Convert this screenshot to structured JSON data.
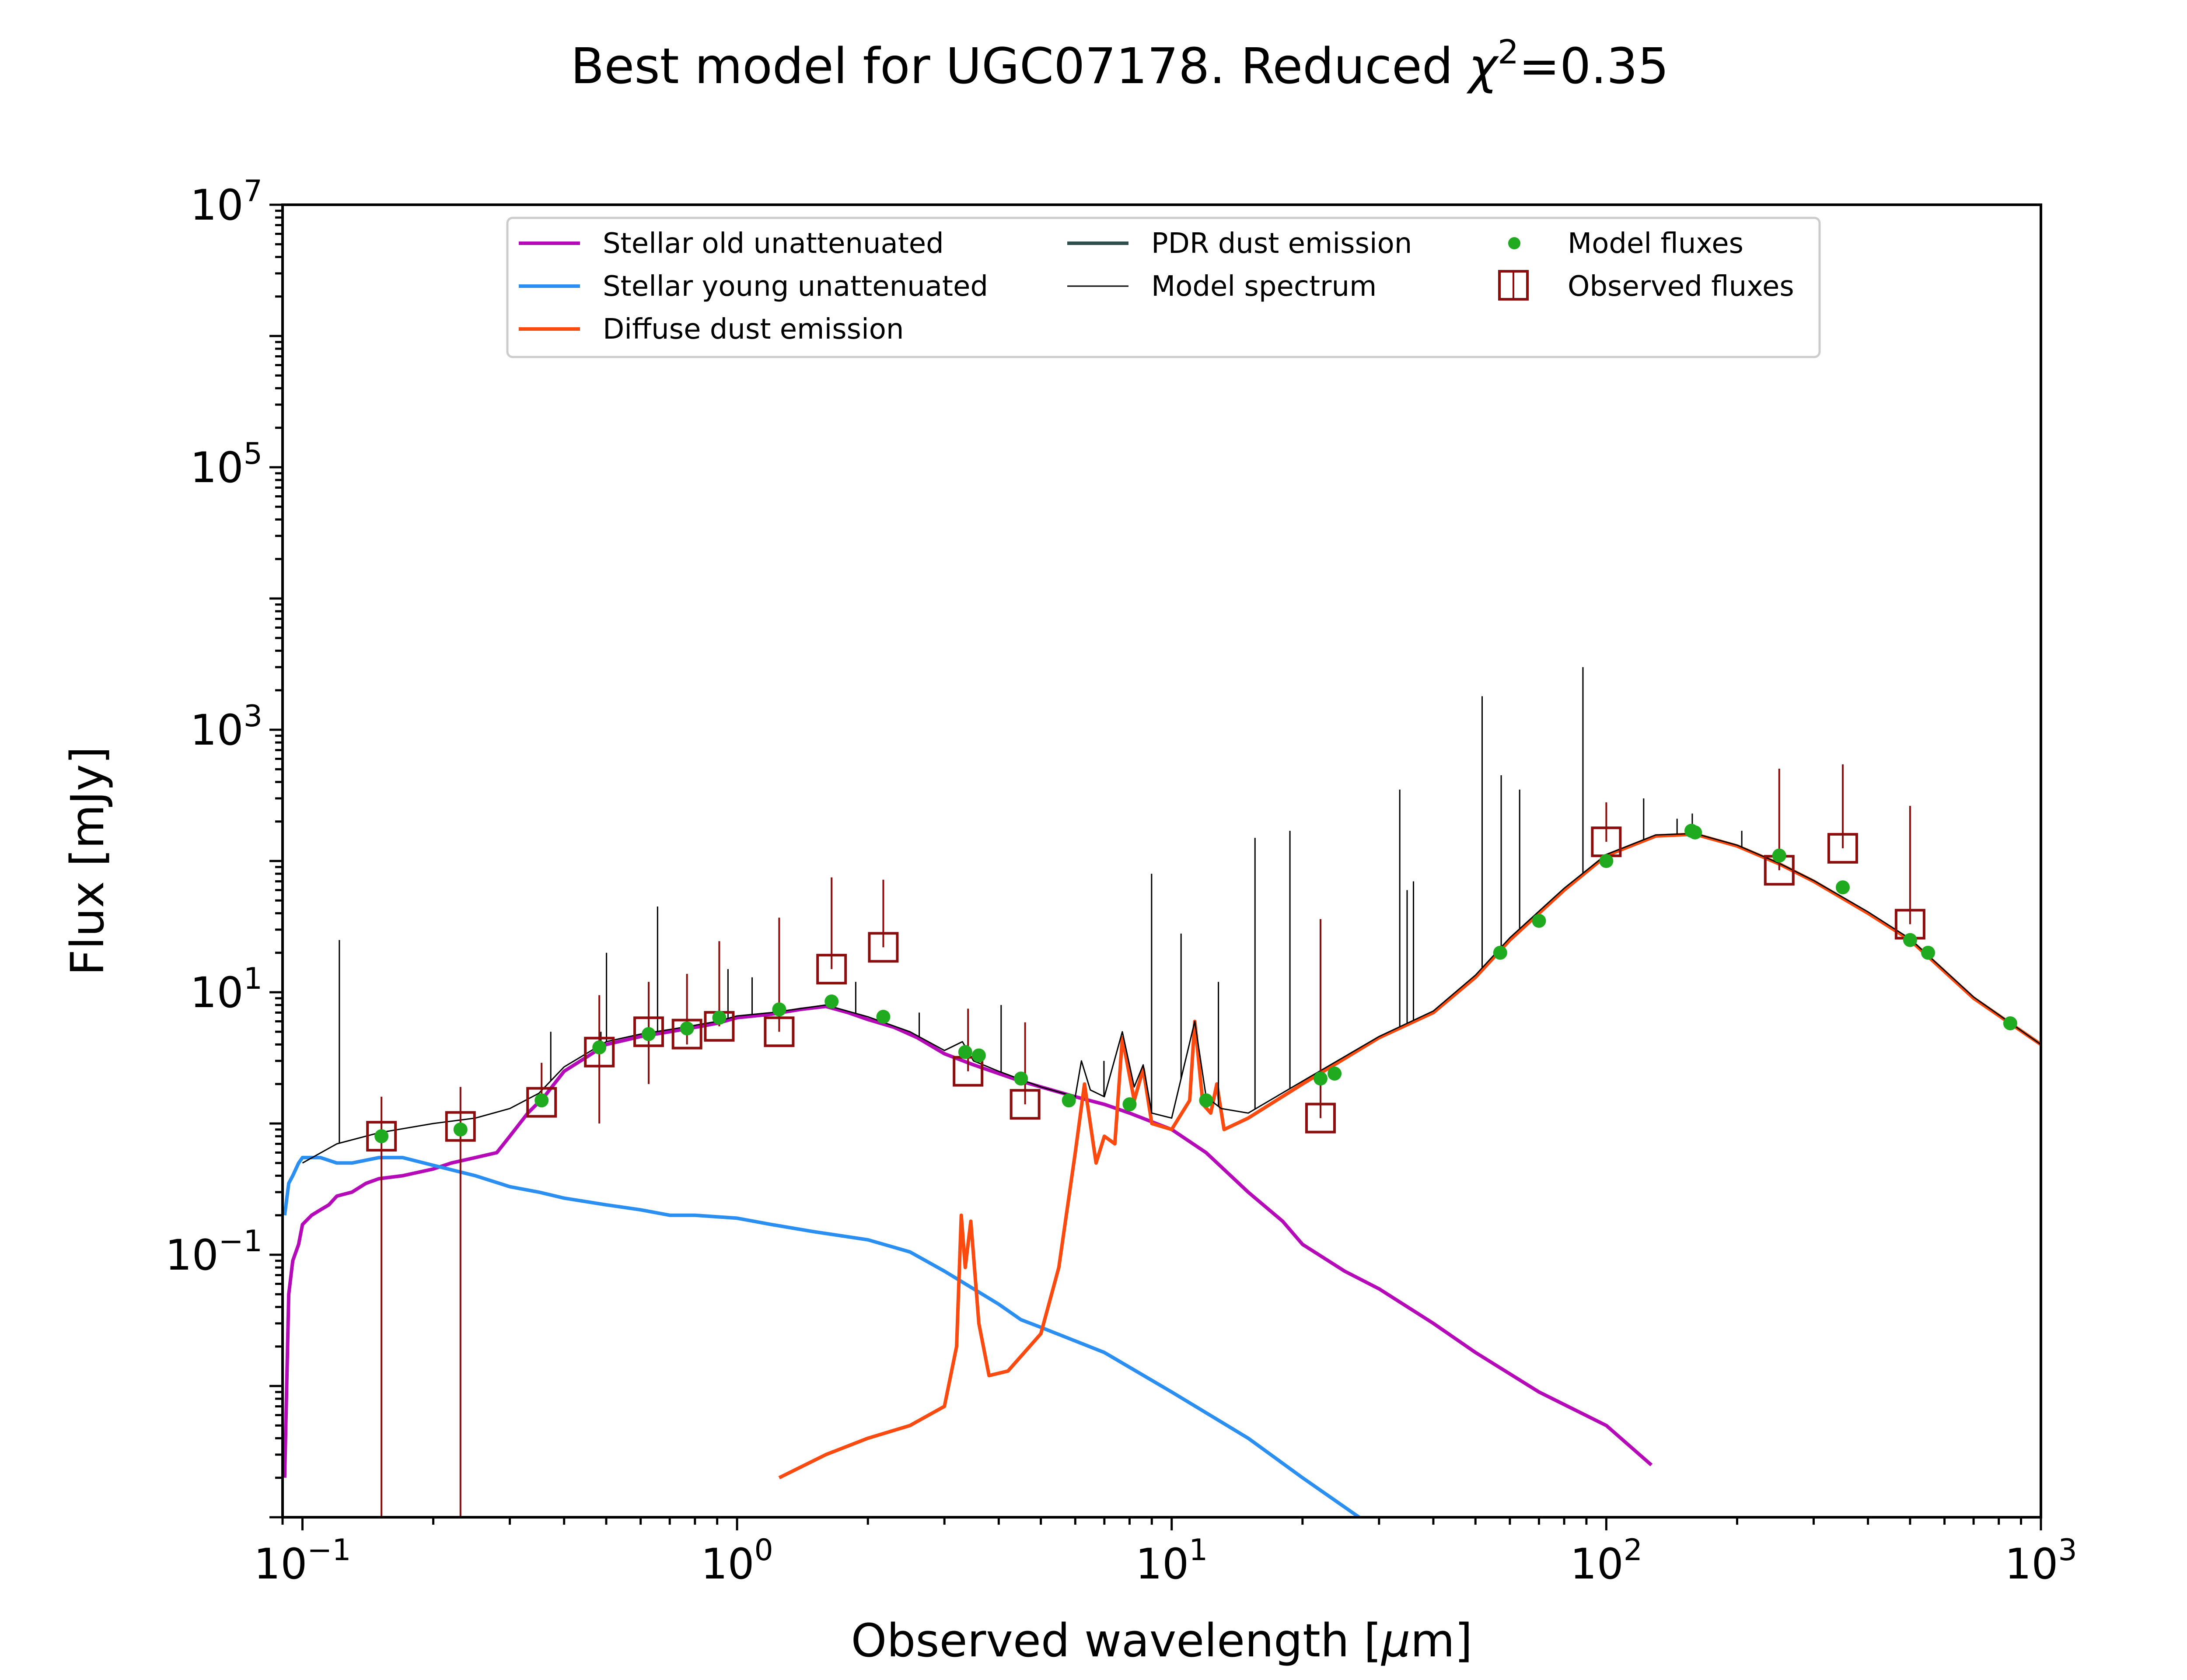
{
  "chart_data": {
    "type": "line",
    "title": "Best model for UGC07178. Reduced χ²=0.35",
    "title_parts": {
      "main": "Best model for UGC07178. Reduced ",
      "symbol": "χ",
      "sup": "2",
      "tail": "=0.35"
    },
    "xlabel": "Observed wavelength [μm]",
    "xlabel_parts": {
      "before": "Observed wavelength [",
      "mu": "μ",
      "after": "m]"
    },
    "ylabel": "Flux [mJy]",
    "x_scale": "log",
    "y_scale": "log",
    "xlim": [
      0.09,
      1000
    ],
    "ylim": [
      0.001,
      10000000
    ],
    "x_ticks": [
      {
        "value": 0.1,
        "base": "10",
        "exp": "−1"
      },
      {
        "value": 1,
        "base": "10",
        "exp": "0"
      },
      {
        "value": 10,
        "base": "10",
        "exp": "1"
      },
      {
        "value": 100,
        "base": "10",
        "exp": "2"
      },
      {
        "value": 1000,
        "base": "10",
        "exp": "3"
      }
    ],
    "y_ticks": [
      {
        "value": 0.1,
        "base": "10",
        "exp": "−1"
      },
      {
        "value": 10,
        "base": "10",
        "exp": "1"
      },
      {
        "value": 1000,
        "base": "10",
        "exp": "3"
      },
      {
        "value": 100000,
        "base": "10",
        "exp": "5"
      },
      {
        "value": 10000000,
        "base": "10",
        "exp": "7"
      }
    ],
    "legend_position": "top-center",
    "legend": {
      "stellar_old": "Stellar old unattenuated",
      "stellar_young": "Stellar young unattenuated",
      "diffuse_dust": "Diffuse dust emission",
      "pdr_dust": "PDR dust emission",
      "model_spectrum": "Model spectrum",
      "model_fluxes": "Model fluxes",
      "observed_fluxes": "Observed fluxes"
    },
    "colors": {
      "stellar_old": "#b40ab8",
      "stellar_young": "#2a8ff0",
      "diffuse_dust": "#fa4a10",
      "pdr_dust": "#2f4f4f",
      "model_spectrum": "#000000",
      "model_fluxes": "#1faa1f",
      "observed_fluxes": "#8b0d0d"
    },
    "series": [
      {
        "key": "stellar_old",
        "points": [
          [
            0.091,
            0.002
          ],
          [
            0.093,
            0.05
          ],
          [
            0.095,
            0.09
          ],
          [
            0.098,
            0.12
          ],
          [
            0.1,
            0.17
          ],
          [
            0.105,
            0.2
          ],
          [
            0.11,
            0.22
          ],
          [
            0.115,
            0.24
          ],
          [
            0.12,
            0.28
          ],
          [
            0.13,
            0.3
          ],
          [
            0.14,
            0.35
          ],
          [
            0.15,
            0.38
          ],
          [
            0.17,
            0.4
          ],
          [
            0.2,
            0.45
          ],
          [
            0.22,
            0.5
          ],
          [
            0.25,
            0.55
          ],
          [
            0.28,
            0.6
          ],
          [
            0.3,
            0.8
          ],
          [
            0.33,
            1.2
          ],
          [
            0.36,
            1.6
          ],
          [
            0.4,
            2.5
          ],
          [
            0.45,
            3.2
          ],
          [
            0.5,
            4.0
          ],
          [
            0.6,
            4.6
          ],
          [
            0.7,
            5.0
          ],
          [
            0.8,
            5.4
          ],
          [
            0.9,
            5.8
          ],
          [
            1.0,
            6.4
          ],
          [
            1.2,
            6.8
          ],
          [
            1.4,
            7.4
          ],
          [
            1.6,
            7.8
          ],
          [
            1.8,
            7.0
          ],
          [
            2.0,
            6.2
          ],
          [
            2.3,
            5.4
          ],
          [
            2.6,
            4.5
          ],
          [
            3.0,
            3.4
          ],
          [
            3.5,
            2.8
          ],
          [
            4.0,
            2.4
          ],
          [
            4.5,
            2.1
          ],
          [
            5,
            1.9
          ],
          [
            6,
            1.6
          ],
          [
            7,
            1.4
          ],
          [
            8,
            1.2
          ],
          [
            10,
            0.9
          ],
          [
            12,
            0.6
          ],
          [
            15,
            0.3
          ],
          [
            18,
            0.18
          ],
          [
            20,
            0.12
          ],
          [
            25,
            0.075
          ],
          [
            30,
            0.055
          ],
          [
            40,
            0.03
          ],
          [
            50,
            0.018
          ],
          [
            70,
            0.009
          ],
          [
            100,
            0.005
          ],
          [
            127,
            0.0025
          ]
        ]
      },
      {
        "key": "stellar_young",
        "points": [
          [
            0.091,
            0.2
          ],
          [
            0.093,
            0.35
          ],
          [
            0.095,
            0.4
          ],
          [
            0.098,
            0.5
          ],
          [
            0.1,
            0.55
          ],
          [
            0.11,
            0.55
          ],
          [
            0.12,
            0.5
          ],
          [
            0.13,
            0.5
          ],
          [
            0.15,
            0.55
          ],
          [
            0.17,
            0.55
          ],
          [
            0.2,
            0.48
          ],
          [
            0.25,
            0.4
          ],
          [
            0.3,
            0.33
          ],
          [
            0.35,
            0.3
          ],
          [
            0.4,
            0.27
          ],
          [
            0.5,
            0.24
          ],
          [
            0.6,
            0.22
          ],
          [
            0.7,
            0.2
          ],
          [
            0.8,
            0.2
          ],
          [
            1.0,
            0.19
          ],
          [
            1.2,
            0.17
          ],
          [
            1.5,
            0.15
          ],
          [
            2.0,
            0.13
          ],
          [
            2.5,
            0.105
          ],
          [
            3.0,
            0.075
          ],
          [
            3.5,
            0.055
          ],
          [
            4.0,
            0.042
          ],
          [
            4.5,
            0.032
          ],
          [
            5.0,
            0.028
          ],
          [
            7.0,
            0.018
          ],
          [
            10.0,
            0.009
          ],
          [
            15.0,
            0.004
          ],
          [
            20.0,
            0.002
          ],
          [
            27.0,
            0.001
          ]
        ]
      },
      {
        "key": "diffuse_dust",
        "points": [
          [
            1.25,
            0.002
          ],
          [
            1.6,
            0.003
          ],
          [
            2.0,
            0.004
          ],
          [
            2.5,
            0.005
          ],
          [
            3.0,
            0.007
          ],
          [
            3.2,
            0.02
          ],
          [
            3.28,
            0.2
          ],
          [
            3.35,
            0.08
          ],
          [
            3.45,
            0.18
          ],
          [
            3.6,
            0.03
          ],
          [
            3.8,
            0.012
          ],
          [
            4.2,
            0.013
          ],
          [
            5.0,
            0.025
          ],
          [
            5.5,
            0.08
          ],
          [
            6.0,
            0.6
          ],
          [
            6.3,
            2.0
          ],
          [
            6.7,
            0.5
          ],
          [
            7.0,
            0.8
          ],
          [
            7.4,
            0.7
          ],
          [
            7.7,
            4.5
          ],
          [
            8.2,
            1.5
          ],
          [
            8.6,
            2.6
          ],
          [
            9.0,
            1.0
          ],
          [
            10,
            0.9
          ],
          [
            11,
            1.5
          ],
          [
            11.3,
            6.0
          ],
          [
            11.8,
            1.4
          ],
          [
            12.3,
            1.2
          ],
          [
            12.7,
            2.0
          ],
          [
            13.2,
            0.9
          ],
          [
            15,
            1.1
          ],
          [
            20,
            2.0
          ],
          [
            30,
            4.5
          ],
          [
            40,
            7.0
          ],
          [
            50,
            13
          ],
          [
            60,
            25
          ],
          [
            80,
            60
          ],
          [
            100,
            110
          ],
          [
            130,
            155
          ],
          [
            160,
            160
          ],
          [
            200,
            130
          ],
          [
            250,
            95
          ],
          [
            300,
            70
          ],
          [
            400,
            40
          ],
          [
            500,
            25
          ],
          [
            700,
            9
          ],
          [
            1000,
            4
          ]
        ]
      },
      {
        "key": "model_spectrum",
        "points": [
          [
            0.1,
            0.5
          ],
          [
            0.12,
            0.7
          ],
          [
            0.15,
            0.85
          ],
          [
            0.2,
            1.0
          ],
          [
            0.25,
            1.1
          ],
          [
            0.3,
            1.3
          ],
          [
            0.35,
            1.7
          ],
          [
            0.4,
            2.7
          ],
          [
            0.5,
            4.2
          ],
          [
            0.6,
            4.8
          ],
          [
            0.7,
            5.2
          ],
          [
            0.8,
            5.6
          ],
          [
            0.9,
            6.0
          ],
          [
            1.0,
            6.6
          ],
          [
            1.2,
            7.0
          ],
          [
            1.6,
            8.0
          ],
          [
            2.0,
            6.5
          ],
          [
            2.5,
            5.0
          ],
          [
            3.0,
            3.6
          ],
          [
            3.3,
            4.2
          ],
          [
            3.5,
            3.0
          ],
          [
            4.0,
            2.5
          ],
          [
            5.0,
            1.9
          ],
          [
            6.0,
            1.6
          ],
          [
            6.2,
            3.0
          ],
          [
            6.5,
            1.8
          ],
          [
            7.0,
            1.6
          ],
          [
            7.7,
            5.0
          ],
          [
            8.2,
            1.9
          ],
          [
            8.6,
            2.8
          ],
          [
            9.0,
            1.2
          ],
          [
            10,
            1.1
          ],
          [
            11.3,
            6.0
          ],
          [
            12,
            1.6
          ],
          [
            13,
            1.3
          ],
          [
            15,
            1.2
          ],
          [
            20,
            2.1
          ],
          [
            30,
            4.6
          ],
          [
            40,
            7.2
          ],
          [
            50,
            13.5
          ],
          [
            60,
            26
          ],
          [
            80,
            62
          ],
          [
            100,
            112
          ],
          [
            130,
            158
          ],
          [
            160,
            162
          ],
          [
            200,
            132
          ],
          [
            250,
            96
          ],
          [
            300,
            71
          ],
          [
            400,
            41
          ],
          [
            500,
            25.5
          ],
          [
            700,
            9.2
          ],
          [
            1000,
            4
          ]
        ]
      }
    ],
    "emission_lines": [
      {
        "x": 0.1216,
        "peak": 25
      },
      {
        "x": 0.3727,
        "peak": 5
      },
      {
        "x": 0.4861,
        "peak": 5
      },
      {
        "x": 0.5007,
        "peak": 20
      },
      {
        "x": 0.6563,
        "peak": 45
      },
      {
        "x": 0.9531,
        "peak": 15
      },
      {
        "x": 1.083,
        "peak": 13
      },
      {
        "x": 1.8751,
        "peak": 12
      },
      {
        "x": 2.6252,
        "peak": 7
      },
      {
        "x": 4.0512,
        "peak": 8
      },
      {
        "x": 6.985,
        "peak": 3
      },
      {
        "x": 8.991,
        "peak": 80
      },
      {
        "x": 10.51,
        "peak": 28
      },
      {
        "x": 12.81,
        "peak": 12
      },
      {
        "x": 15.55,
        "peak": 150
      },
      {
        "x": 18.71,
        "peak": 170
      },
      {
        "x": 33.48,
        "peak": 350
      },
      {
        "x": 34.81,
        "peak": 60
      },
      {
        "x": 36.0,
        "peak": 70
      },
      {
        "x": 51.8,
        "peak": 1800
      },
      {
        "x": 57.3,
        "peak": 450
      },
      {
        "x": 63.18,
        "peak": 350
      },
      {
        "x": 88.36,
        "peak": 3000
      },
      {
        "x": 121.9,
        "peak": 300
      },
      {
        "x": 145.5,
        "peak": 210
      },
      {
        "x": 157.7,
        "peak": 230
      },
      {
        "x": 205.0,
        "peak": 170
      }
    ],
    "model_fluxes": [
      [
        0.152,
        0.8
      ],
      [
        0.231,
        0.9
      ],
      [
        0.355,
        1.5
      ],
      [
        0.482,
        3.8
      ],
      [
        0.626,
        4.8
      ],
      [
        0.767,
        5.3
      ],
      [
        0.91,
        6.4
      ],
      [
        1.25,
        7.4
      ],
      [
        1.65,
        8.5
      ],
      [
        2.17,
        6.5
      ],
      [
        3.35,
        3.5
      ],
      [
        3.6,
        3.3
      ],
      [
        4.5,
        2.2
      ],
      [
        5.8,
        1.5
      ],
      [
        8.0,
        1.4
      ],
      [
        12.0,
        1.5
      ],
      [
        22.0,
        2.2
      ],
      [
        23.7,
        2.4
      ],
      [
        57.0,
        20
      ],
      [
        70.0,
        35
      ],
      [
        100.0,
        100
      ],
      [
        157.0,
        170
      ],
      [
        160.0,
        165
      ],
      [
        250.0,
        110
      ],
      [
        350.0,
        63
      ],
      [
        500.0,
        25
      ],
      [
        550.0,
        20
      ],
      [
        850.0,
        5.8
      ]
    ],
    "observed_fluxes": [
      {
        "x": 0.152,
        "y": 0.8,
        "err_lo": 0.8,
        "err_hi": 0.8
      },
      {
        "x": 0.231,
        "y": 0.95,
        "err_lo": 0.95,
        "err_hi": 0.95
      },
      {
        "x": 0.355,
        "y": 1.45,
        "err_lo": 0.017,
        "err_hi": 1.45
      },
      {
        "x": 0.482,
        "y": 3.5,
        "err_lo": 2.5,
        "err_hi": 6
      },
      {
        "x": 0.626,
        "y": 5.0,
        "err_lo": 3.0,
        "err_hi": 7
      },
      {
        "x": 0.767,
        "y": 4.8,
        "err_lo": 0.8,
        "err_hi": 9
      },
      {
        "x": 0.91,
        "y": 5.5,
        "err_lo": 0.001,
        "err_hi": 19
      },
      {
        "x": 1.25,
        "y": 5.0,
        "err_lo": 0.001,
        "err_hi": 32
      },
      {
        "x": 1.65,
        "y": 15,
        "err_lo": 0.001,
        "err_hi": 60
      },
      {
        "x": 2.17,
        "y": 22,
        "err_lo": 0.001,
        "err_hi": 50
      },
      {
        "x": 3.4,
        "y": 2.5,
        "err_lo": 0.001,
        "err_hi": 5
      },
      {
        "x": 4.6,
        "y": 1.4,
        "err_lo": 0.001,
        "err_hi": 4.5
      },
      {
        "x": 22.0,
        "y": 1.1,
        "err_lo": 0.001,
        "err_hi": 35
      },
      {
        "x": 100.0,
        "y": 140,
        "err_lo": 0.001,
        "err_hi": 140
      },
      {
        "x": 250.0,
        "y": 85,
        "err_lo": 0.001,
        "err_hi": 420
      },
      {
        "x": 350.0,
        "y": 125,
        "err_lo": 0.001,
        "err_hi": 420
      },
      {
        "x": 500.0,
        "y": 33,
        "err_lo": 0.001,
        "err_hi": 230
      }
    ]
  }
}
